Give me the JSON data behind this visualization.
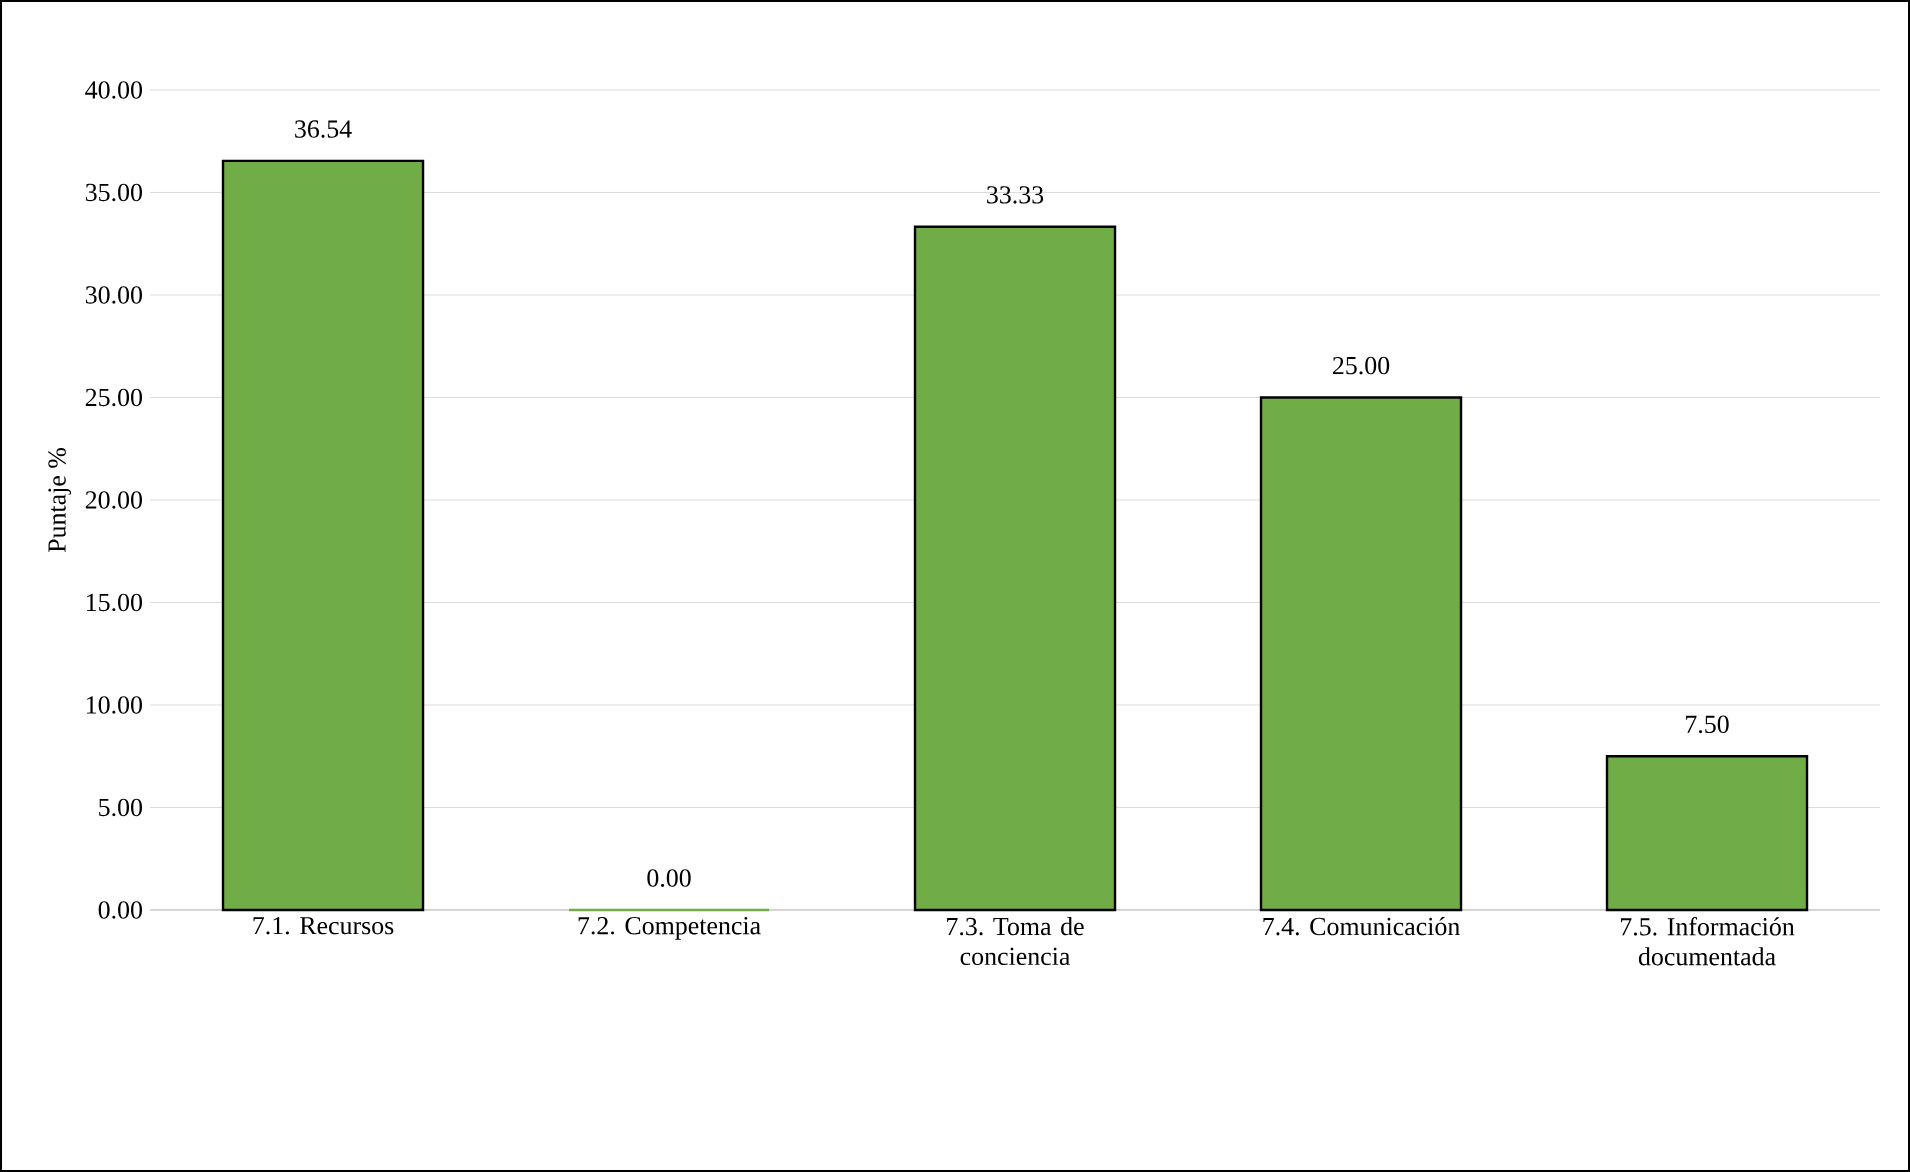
{
  "chart_data": {
    "type": "bar",
    "ylabel": "Puntaje %",
    "categories": [
      "7.1. Recursos",
      "7.2. Competencia",
      "7.3. Toma de conciencia",
      "7.4. Comunicación",
      "7.5. Información documentada"
    ],
    "values": [
      36.54,
      0,
      33.33,
      25,
      7.5
    ],
    "value_labels": [
      "36.54",
      "0.00",
      "33.33",
      "25.00",
      "7.50"
    ],
    "color": "#70ad47",
    "ylim": [
      0,
      40
    ],
    "yticks": [
      {
        "value": 0,
        "label": "0.00"
      },
      {
        "value": 5,
        "label": "5.00"
      },
      {
        "value": 10,
        "label": "10.00"
      },
      {
        "value": 15,
        "label": "15.00"
      },
      {
        "value": 20,
        "label": "20.00"
      },
      {
        "value": 25,
        "label": "25.00"
      },
      {
        "value": 30,
        "label": "30.00"
      },
      {
        "value": 35,
        "label": "35.00"
      },
      {
        "value": 40,
        "label": "40.00"
      }
    ],
    "grid": "y"
  }
}
